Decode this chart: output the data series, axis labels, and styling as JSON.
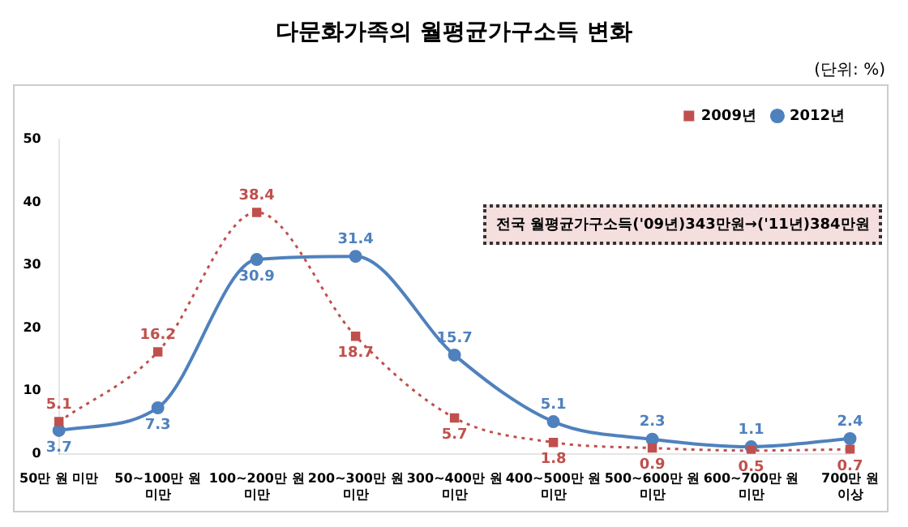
{
  "chart_data": {
    "type": "line",
    "title": "다문화가족의 월평균가구소득 변화",
    "annotations": [
      "(단위: %)",
      "전국 월평균가구소득('09년)343만원→('11년)384만원"
    ],
    "categories": [
      "50만 원 미만",
      "50~100만 원 미만",
      "100~200만 원 미만",
      "200~300만 원 미만",
      "300~400만 원 미만",
      "400~500만 원 미만",
      "500~600만 원 미만",
      "600~700만 원 미만",
      "700만 원 이상"
    ],
    "series": [
      {
        "name": "2009년",
        "color": "#c0504d",
        "marker": "square",
        "line_style": "dotted",
        "values": [
          5.1,
          16.2,
          38.4,
          18.7,
          5.7,
          1.8,
          0.9,
          0.5,
          0.7
        ]
      },
      {
        "name": "2012년",
        "color": "#4f81bd",
        "marker": "circle",
        "line_style": "solid",
        "values": [
          3.7,
          7.3,
          30.9,
          31.4,
          15.7,
          5.1,
          2.3,
          1.1,
          2.4
        ]
      }
    ],
    "ylim": [
      0,
      50
    ],
    "yticks": [
      0,
      10,
      20,
      30,
      40,
      50
    ],
    "grid": false,
    "legend": "top right",
    "data_labels": true
  }
}
